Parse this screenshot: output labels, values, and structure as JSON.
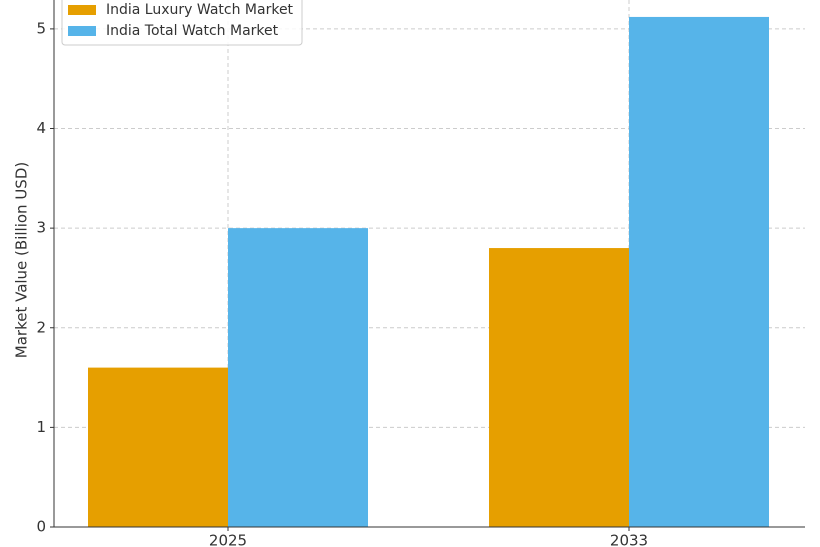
{
  "chart_data": {
    "type": "bar",
    "y_label": "Market Value (Billion USD)",
    "categories": [
      "2025",
      "2033"
    ],
    "series": [
      {
        "name": "India Luxury Watch Market",
        "color": "#E69F00",
        "values": [
          1.6,
          2.8
        ]
      },
      {
        "name": "India Total Watch Market",
        "color": "#56B4E9",
        "values": [
          3.0,
          5.12
        ]
      }
    ],
    "ylim": [
      0,
      5.29
    ],
    "yticks": [
      0,
      1,
      2,
      3,
      4,
      5
    ],
    "grid": true,
    "legend": "upper left"
  }
}
